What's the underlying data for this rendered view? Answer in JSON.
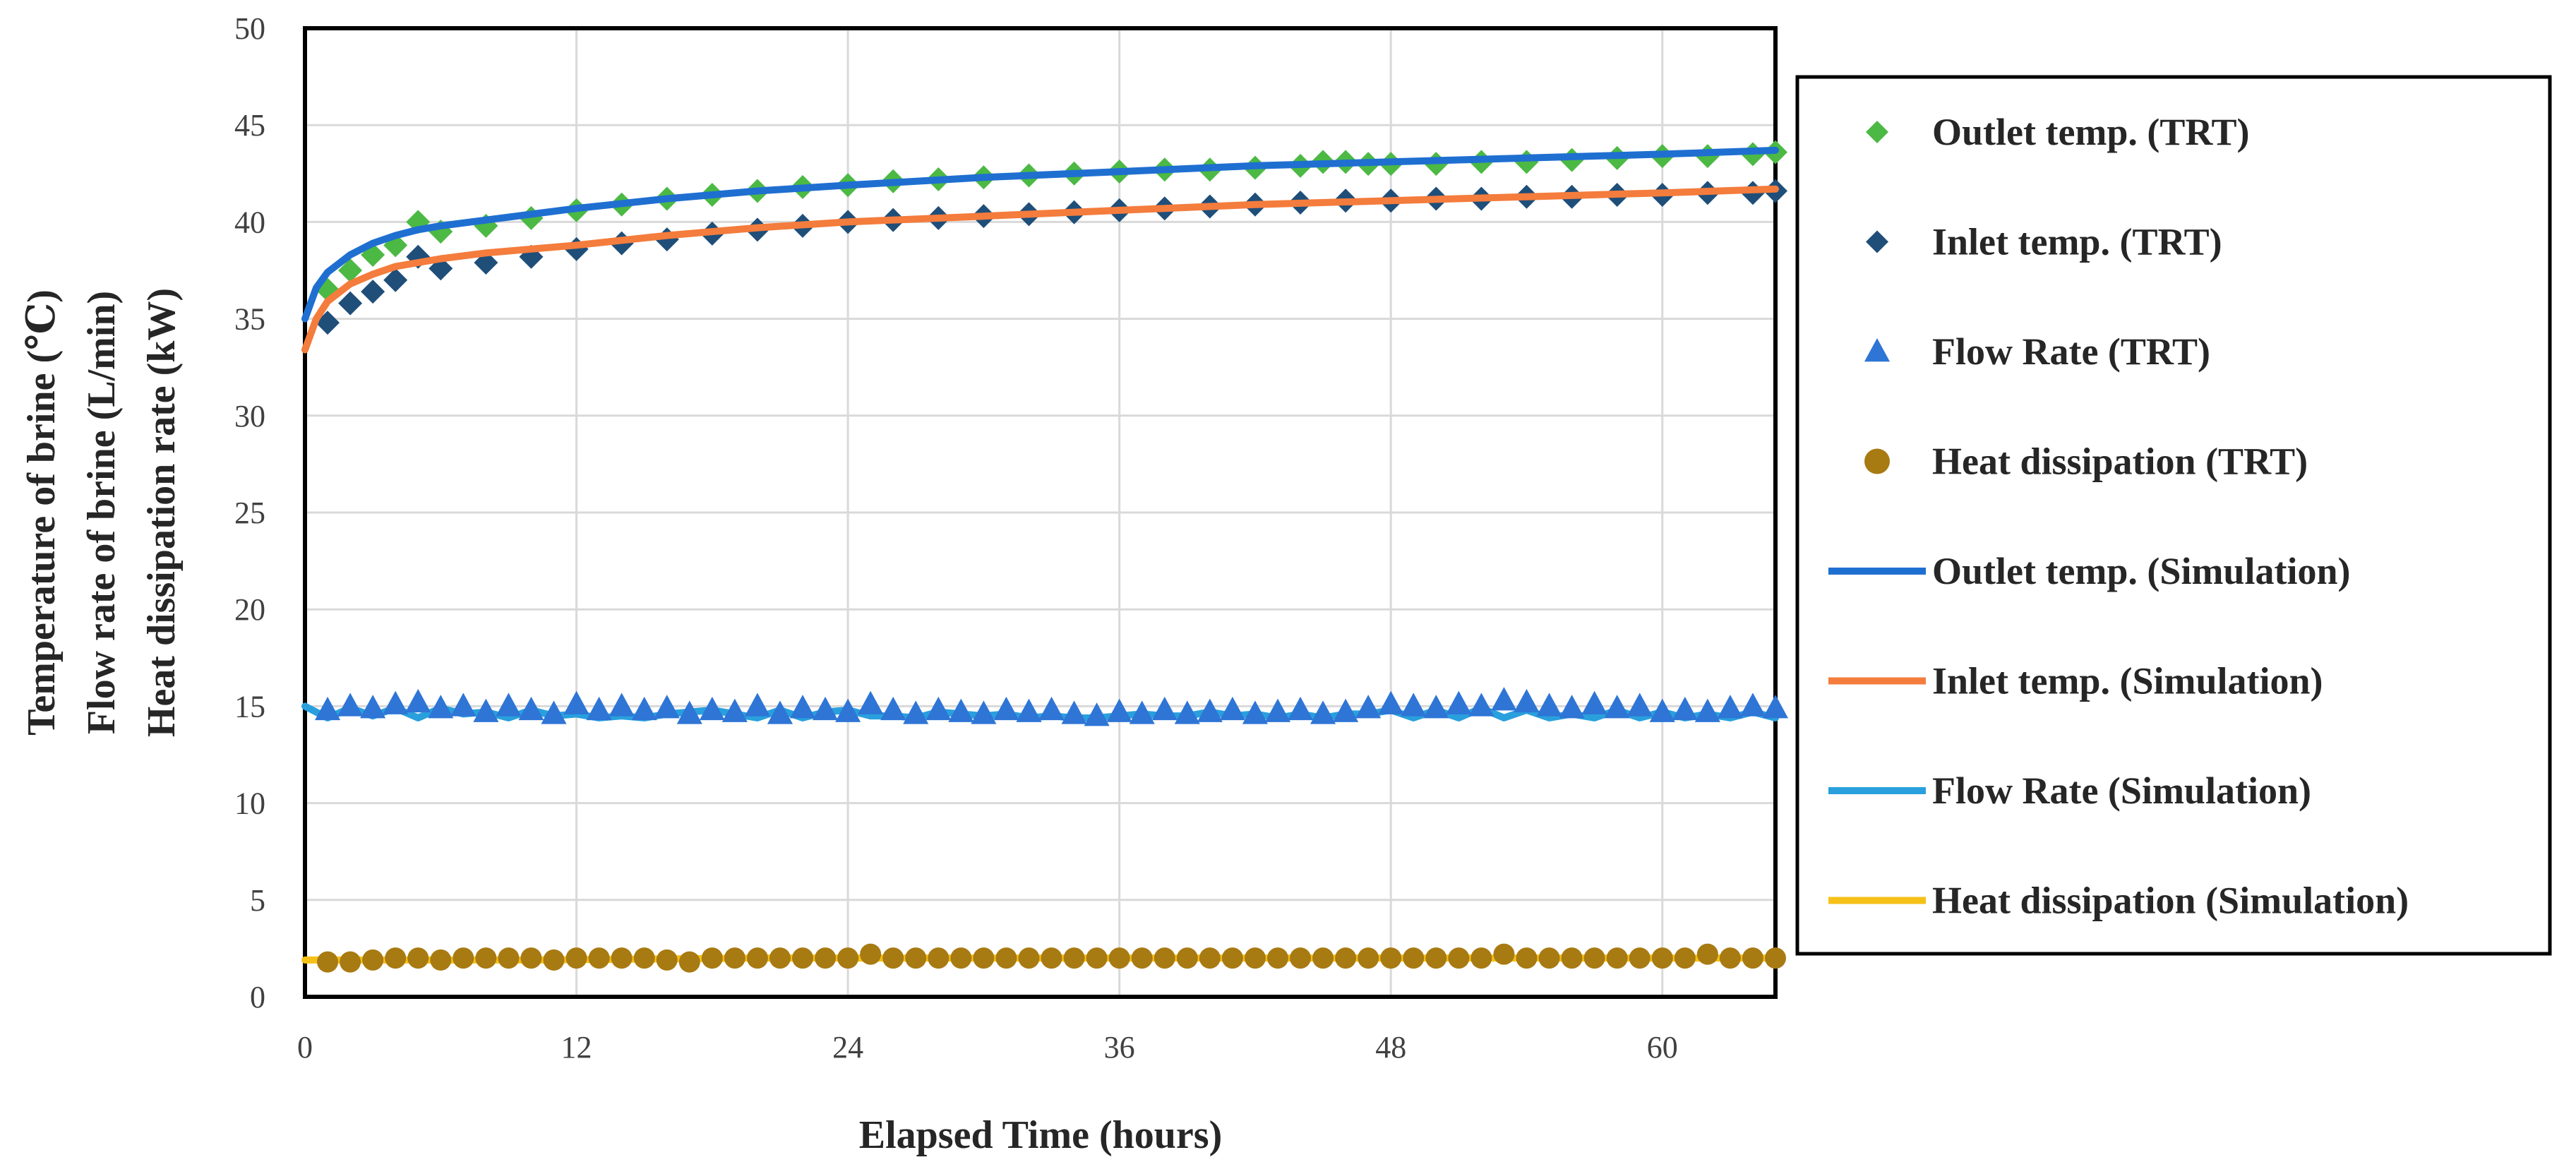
{
  "chart_data": {
    "type": "scatter",
    "xlabel": "Elapsed Time (hours)",
    "ylabel_lines": [
      "Temperature of brine (℃)",
      "Flow rate of brine (L/min)",
      "Heat dissipation rate (kW)"
    ],
    "xlim": [
      0,
      65
    ],
    "ylim": [
      0,
      50
    ],
    "x_ticks": [
      0,
      12,
      24,
      36,
      48,
      60
    ],
    "y_ticks": [
      0,
      5,
      10,
      15,
      20,
      25,
      30,
      35,
      40,
      45,
      50
    ],
    "grid": "vertical",
    "legend_position": "right",
    "series": [
      {
        "name": "Outlet temp. (TRT)",
        "kind": "marker",
        "marker": "diamond",
        "color": "#4cb944",
        "x": [
          1,
          2,
          3,
          4,
          5,
          6,
          8,
          10,
          12,
          14,
          16,
          18,
          20,
          22,
          24,
          26,
          28,
          30,
          32,
          34,
          36,
          38,
          40,
          42,
          44,
          45,
          46,
          47,
          48,
          50,
          52,
          54,
          56,
          58,
          60,
          62,
          64,
          65
        ],
        "y": [
          36.5,
          37.5,
          38.3,
          38.8,
          40.0,
          39.5,
          39.8,
          40.2,
          40.6,
          40.9,
          41.2,
          41.4,
          41.6,
          41.8,
          41.9,
          42.1,
          42.2,
          42.3,
          42.4,
          42.5,
          42.6,
          42.7,
          42.7,
          42.8,
          42.9,
          43.1,
          43.1,
          43.0,
          43.0,
          43.0,
          43.1,
          43.1,
          43.2,
          43.3,
          43.4,
          43.4,
          43.5,
          43.6
        ]
      },
      {
        "name": "Inlet temp. (TRT)",
        "kind": "marker",
        "marker": "diamond",
        "color": "#1f4e79",
        "x": [
          1,
          2,
          3,
          4,
          5,
          6,
          8,
          10,
          12,
          14,
          16,
          18,
          20,
          22,
          24,
          26,
          28,
          30,
          32,
          34,
          36,
          38,
          40,
          42,
          44,
          46,
          48,
          50,
          52,
          54,
          56,
          58,
          60,
          62,
          64,
          65
        ],
        "y": [
          34.8,
          35.8,
          36.4,
          37.0,
          38.2,
          37.6,
          37.9,
          38.2,
          38.6,
          38.9,
          39.1,
          39.4,
          39.6,
          39.8,
          40.0,
          40.1,
          40.2,
          40.3,
          40.4,
          40.5,
          40.6,
          40.7,
          40.8,
          40.9,
          41.0,
          41.1,
          41.1,
          41.2,
          41.2,
          41.3,
          41.3,
          41.4,
          41.4,
          41.5,
          41.5,
          41.6
        ]
      },
      {
        "name": "Flow Rate (TRT)",
        "kind": "marker",
        "marker": "triangle",
        "color": "#2e75d6",
        "x": [
          1,
          2,
          3,
          4,
          5,
          6,
          7,
          8,
          9,
          10,
          11,
          12,
          13,
          14,
          15,
          16,
          17,
          18,
          19,
          20,
          21,
          22,
          23,
          24,
          25,
          26,
          27,
          28,
          29,
          30,
          31,
          32,
          33,
          34,
          35,
          36,
          37,
          38,
          39,
          40,
          41,
          42,
          43,
          44,
          45,
          46,
          47,
          48,
          49,
          50,
          51,
          52,
          53,
          54,
          55,
          56,
          57,
          58,
          59,
          60,
          61,
          62,
          63,
          64,
          65
        ],
        "y": [
          14.8,
          15.0,
          14.9,
          15.1,
          15.2,
          14.9,
          15.0,
          14.7,
          15.0,
          14.8,
          14.6,
          15.1,
          14.8,
          15.0,
          14.8,
          14.9,
          14.6,
          14.8,
          14.7,
          15.0,
          14.6,
          14.9,
          14.8,
          14.7,
          15.1,
          14.8,
          14.6,
          14.8,
          14.7,
          14.6,
          14.8,
          14.7,
          14.8,
          14.6,
          14.5,
          14.7,
          14.6,
          14.8,
          14.6,
          14.7,
          14.8,
          14.6,
          14.7,
          14.8,
          14.6,
          14.7,
          14.9,
          15.1,
          15.0,
          14.9,
          15.1,
          15.0,
          15.3,
          15.2,
          15.0,
          14.9,
          15.1,
          14.9,
          15.0,
          14.7,
          14.8,
          14.7,
          14.9,
          15.0,
          14.9
        ]
      },
      {
        "name": "Heat dissipation (TRT)",
        "kind": "marker",
        "marker": "circle",
        "color": "#a87a12",
        "x": [
          1,
          2,
          3,
          4,
          5,
          6,
          7,
          8,
          9,
          10,
          11,
          12,
          13,
          14,
          15,
          16,
          17,
          18,
          19,
          20,
          21,
          22,
          23,
          24,
          25,
          26,
          27,
          28,
          29,
          30,
          31,
          32,
          33,
          34,
          35,
          36,
          37,
          38,
          39,
          40,
          41,
          42,
          43,
          44,
          45,
          46,
          47,
          48,
          49,
          50,
          51,
          52,
          53,
          54,
          55,
          56,
          57,
          58,
          59,
          60,
          61,
          62,
          63,
          64,
          65
        ],
        "y": [
          1.8,
          1.8,
          1.9,
          2.0,
          2.0,
          1.9,
          2.0,
          2.0,
          2.0,
          2.0,
          1.9,
          2.0,
          2.0,
          2.0,
          2.0,
          1.9,
          1.8,
          2.0,
          2.0,
          2.0,
          2.0,
          2.0,
          2.0,
          2.0,
          2.2,
          2.0,
          2.0,
          2.0,
          2.0,
          2.0,
          2.0,
          2.0,
          2.0,
          2.0,
          2.0,
          2.0,
          2.0,
          2.0,
          2.0,
          2.0,
          2.0,
          2.0,
          2.0,
          2.0,
          2.0,
          2.0,
          2.0,
          2.0,
          2.0,
          2.0,
          2.0,
          2.0,
          2.2,
          2.0,
          2.0,
          2.0,
          2.0,
          2.0,
          2.0,
          2.0,
          2.0,
          2.2,
          2.0,
          2.0,
          2.0
        ]
      },
      {
        "name": "Outlet temp. (Simulation)",
        "kind": "line",
        "color": "#1f6fd1",
        "x": [
          0,
          0.5,
          1,
          2,
          3,
          4,
          5,
          6,
          8,
          10,
          12,
          16,
          20,
          24,
          30,
          36,
          42,
          48,
          54,
          60,
          65
        ],
        "y": [
          35.0,
          36.6,
          37.4,
          38.3,
          38.9,
          39.3,
          39.6,
          39.8,
          40.1,
          40.4,
          40.7,
          41.2,
          41.6,
          41.9,
          42.3,
          42.6,
          42.9,
          43.1,
          43.3,
          43.5,
          43.7
        ]
      },
      {
        "name": "Inlet temp. (Simulation)",
        "kind": "line",
        "color": "#f47c3c",
        "x": [
          0,
          0.5,
          1,
          2,
          3,
          4,
          5,
          6,
          8,
          10,
          12,
          16,
          20,
          24,
          30,
          36,
          42,
          48,
          54,
          60,
          65
        ],
        "y": [
          33.4,
          35.0,
          35.9,
          36.8,
          37.3,
          37.7,
          37.9,
          38.1,
          38.4,
          38.6,
          38.8,
          39.3,
          39.7,
          40.0,
          40.3,
          40.6,
          40.9,
          41.1,
          41.3,
          41.5,
          41.7
        ]
      },
      {
        "name": "Flow Rate (Simulation)",
        "kind": "line",
        "color": "#29a0dd",
        "x": [
          0,
          1,
          2,
          3,
          4,
          5,
          6,
          7,
          8,
          9,
          10,
          11,
          12,
          13,
          14,
          15,
          16,
          17,
          18,
          19,
          20,
          21,
          22,
          23,
          24,
          25,
          26,
          27,
          28,
          29,
          30,
          31,
          32,
          33,
          34,
          35,
          36,
          37,
          38,
          39,
          40,
          41,
          42,
          43,
          44,
          45,
          46,
          47,
          48,
          49,
          50,
          51,
          52,
          53,
          54,
          55,
          56,
          57,
          58,
          59,
          60,
          61,
          62,
          63,
          64,
          65
        ],
        "y": [
          15.0,
          14.4,
          14.9,
          14.5,
          14.9,
          14.4,
          14.9,
          14.6,
          14.7,
          14.4,
          14.8,
          14.5,
          14.6,
          14.4,
          14.5,
          14.4,
          14.6,
          14.7,
          14.8,
          14.6,
          14.4,
          14.8,
          14.4,
          14.7,
          14.8,
          14.5,
          14.5,
          14.4,
          14.7,
          14.6,
          14.5,
          14.6,
          14.4,
          14.5,
          14.4,
          14.4,
          14.5,
          14.6,
          14.5,
          14.5,
          14.7,
          14.5,
          14.6,
          14.4,
          14.6,
          14.4,
          14.6,
          14.6,
          14.8,
          14.4,
          14.8,
          14.4,
          14.9,
          14.4,
          14.8,
          14.4,
          14.6,
          14.4,
          14.8,
          14.4,
          14.7,
          14.4,
          14.6,
          14.4,
          14.7,
          14.4
        ]
      },
      {
        "name": "Heat dissipation (Simulation)",
        "kind": "line",
        "color": "#f5c018",
        "x": [
          0,
          10,
          20,
          30,
          40,
          50,
          60,
          65
        ],
        "y": [
          1.9,
          1.9,
          2.0,
          2.0,
          2.0,
          2.0,
          2.0,
          2.0
        ]
      }
    ]
  }
}
